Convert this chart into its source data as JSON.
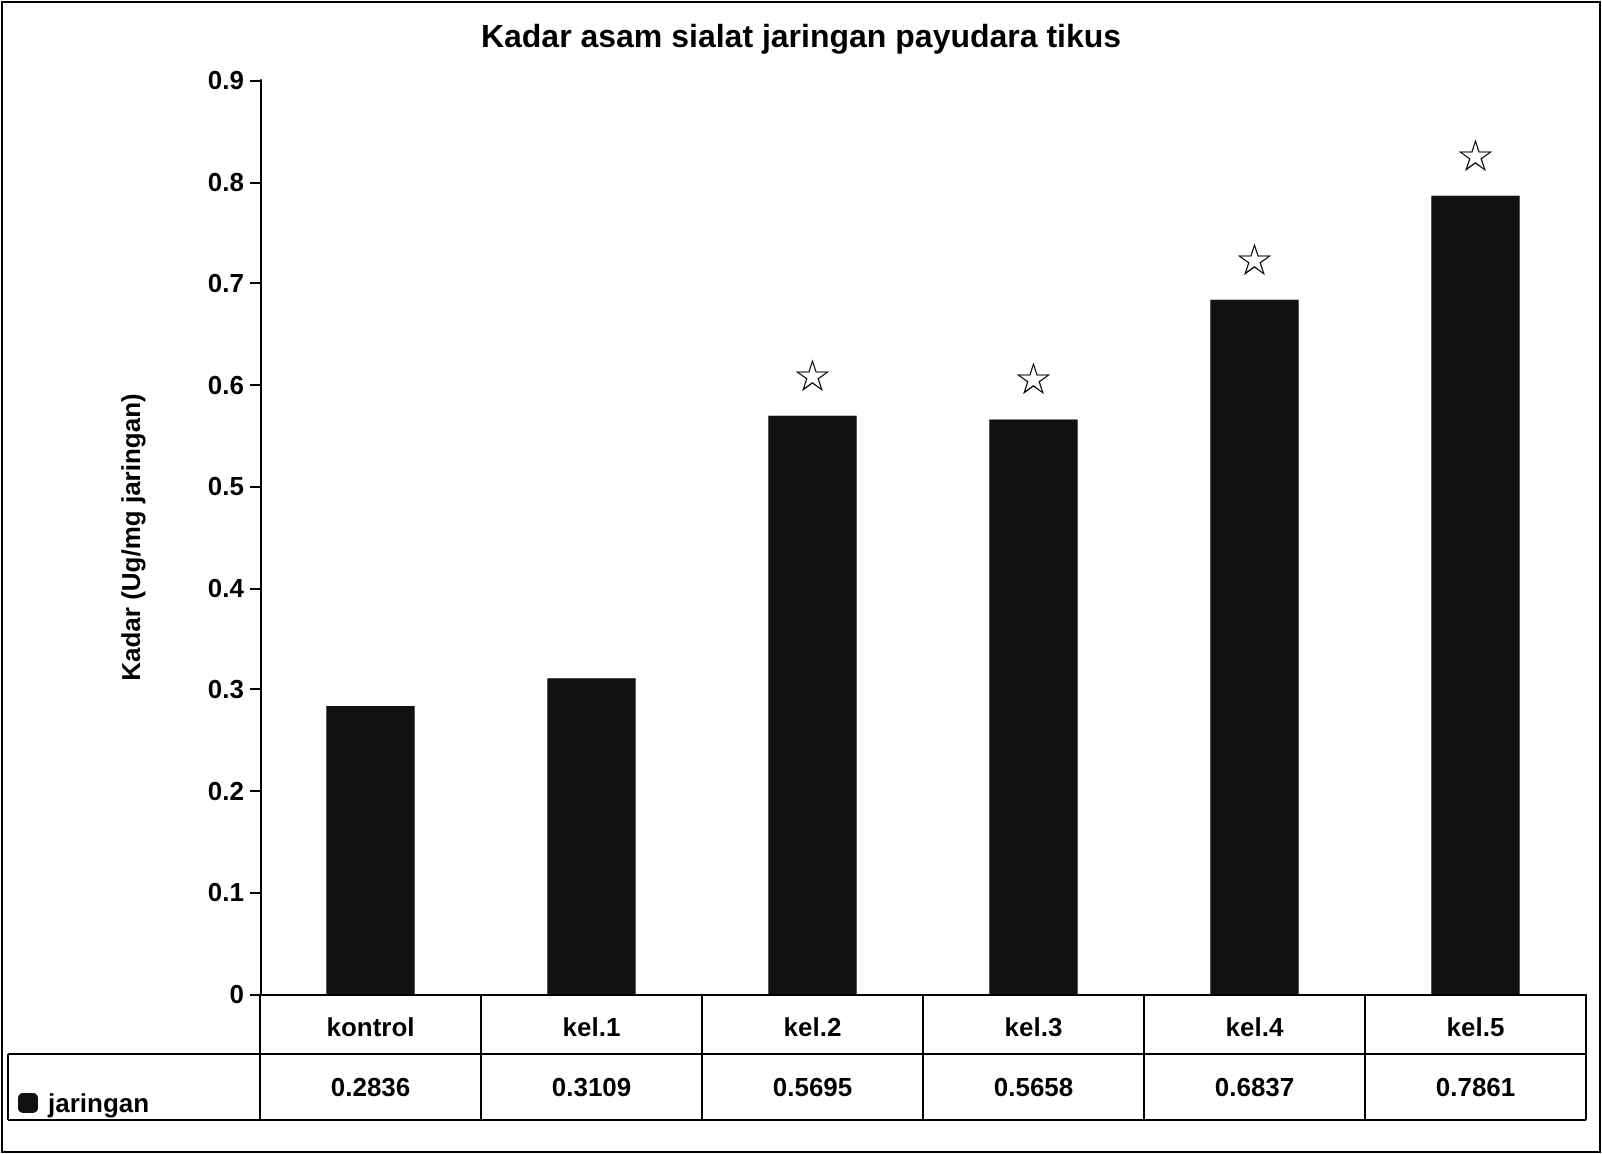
{
  "chart_data": {
    "type": "bar",
    "title": "Kadar asam sialat jaringan payudara tikus",
    "ylabel": "Kadar (Ug/mg jaringan)",
    "categories": [
      "kontrol",
      "kel.1",
      "kel.2",
      "kel.3",
      "kel.4",
      "kel.5"
    ],
    "series": [
      {
        "name": "jaringan",
        "color": "#111111",
        "values": [
          0.2836,
          0.3109,
          0.5695,
          0.5658,
          0.6837,
          0.7861
        ]
      }
    ],
    "ylim": [
      0,
      0.9
    ],
    "yticks": [
      0,
      0.1,
      0.2,
      0.3,
      0.4,
      0.5,
      0.6,
      0.7,
      0.8,
      0.9
    ],
    "grid": false,
    "legend": "bottom left",
    "data_labels": true,
    "annotations": [
      {
        "text": "☆",
        "x": "kel.2",
        "y": 0.5695
      },
      {
        "text": "☆",
        "x": "kel.3",
        "y": 0.5658
      },
      {
        "text": "☆",
        "x": "kel.4",
        "y": 0.6837
      },
      {
        "text": "☆",
        "x": "kel.5",
        "y": 0.7861
      }
    ]
  }
}
